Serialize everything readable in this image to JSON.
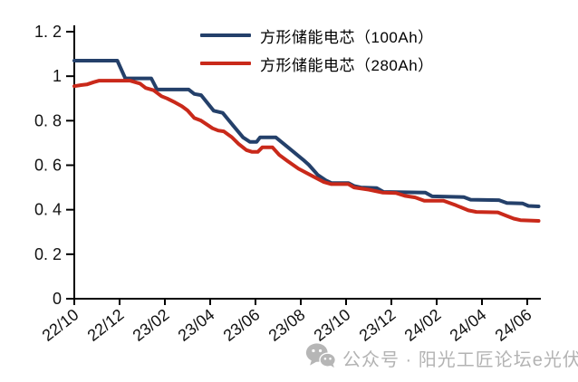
{
  "chart_data": {
    "type": "line",
    "title": "",
    "x_unit": "months since 2022/10 (0 = 22/10, tick every 2 months)",
    "x_tick_positions_months": [
      0,
      2,
      4,
      6,
      8,
      10,
      12,
      14,
      16,
      18,
      20
    ],
    "x_tick_labels": [
      "22/10",
      "22/12",
      "23/02",
      "23/04",
      "23/06",
      "23/08",
      "23/10",
      "23/12",
      "24/02",
      "24/04",
      "24/06"
    ],
    "y_ticks": [
      0,
      0.2,
      0.4,
      0.6,
      0.8,
      1,
      1.2
    ],
    "y_tick_labels": [
      "0",
      "0. 2",
      "0. 4",
      "0. 6",
      "0. 8",
      "1",
      "1. 2"
    ],
    "ylim": [
      0,
      1.2
    ],
    "xlim": [
      0,
      20.6
    ],
    "grid": false,
    "legend_position": "top-center",
    "series": [
      {
        "name": "方形储能电芯（100Ah）",
        "color": "#24406A",
        "points": [
          [
            0,
            1.07
          ],
          [
            1.9,
            1.07
          ],
          [
            2.25,
            0.99
          ],
          [
            3.4,
            0.99
          ],
          [
            3.65,
            0.94
          ],
          [
            5.05,
            0.94
          ],
          [
            5.3,
            0.92
          ],
          [
            5.6,
            0.915
          ],
          [
            6.15,
            0.845
          ],
          [
            6.55,
            0.835
          ],
          [
            7.0,
            0.78
          ],
          [
            7.45,
            0.725
          ],
          [
            7.75,
            0.705
          ],
          [
            8.05,
            0.705
          ],
          [
            8.2,
            0.725
          ],
          [
            8.9,
            0.725
          ],
          [
            9.5,
            0.675
          ],
          [
            10.1,
            0.625
          ],
          [
            10.35,
            0.602
          ],
          [
            10.75,
            0.556
          ],
          [
            11.1,
            0.532
          ],
          [
            11.35,
            0.52
          ],
          [
            12.1,
            0.52
          ],
          [
            12.35,
            0.507
          ],
          [
            12.65,
            0.5
          ],
          [
            13.35,
            0.497
          ],
          [
            13.65,
            0.48
          ],
          [
            15.5,
            0.477
          ],
          [
            15.8,
            0.46
          ],
          [
            17.2,
            0.457
          ],
          [
            17.5,
            0.445
          ],
          [
            18.75,
            0.443
          ],
          [
            19.1,
            0.43
          ],
          [
            19.8,
            0.428
          ],
          [
            20.05,
            0.417
          ],
          [
            20.5,
            0.415
          ]
        ]
      },
      {
        "name": "方形储能电芯（280Ah）",
        "color": "#C9291A",
        "points": [
          [
            0,
            0.955
          ],
          [
            0.3,
            0.96
          ],
          [
            0.55,
            0.963
          ],
          [
            0.85,
            0.973
          ],
          [
            1.1,
            0.98
          ],
          [
            2.45,
            0.98
          ],
          [
            2.9,
            0.967
          ],
          [
            3.15,
            0.947
          ],
          [
            3.5,
            0.937
          ],
          [
            3.85,
            0.91
          ],
          [
            4.1,
            0.9
          ],
          [
            4.45,
            0.882
          ],
          [
            4.75,
            0.865
          ],
          [
            5.0,
            0.846
          ],
          [
            5.3,
            0.812
          ],
          [
            5.6,
            0.8
          ],
          [
            5.9,
            0.78
          ],
          [
            6.1,
            0.766
          ],
          [
            6.35,
            0.756
          ],
          [
            6.6,
            0.752
          ],
          [
            6.95,
            0.726
          ],
          [
            7.25,
            0.696
          ],
          [
            7.6,
            0.668
          ],
          [
            7.85,
            0.66
          ],
          [
            8.1,
            0.66
          ],
          [
            8.3,
            0.68
          ],
          [
            8.75,
            0.68
          ],
          [
            9.05,
            0.646
          ],
          [
            9.4,
            0.62
          ],
          [
            9.9,
            0.584
          ],
          [
            10.5,
            0.552
          ],
          [
            11.0,
            0.525
          ],
          [
            11.35,
            0.515
          ],
          [
            12.1,
            0.515
          ],
          [
            12.35,
            0.5
          ],
          [
            13.0,
            0.49
          ],
          [
            13.6,
            0.477
          ],
          [
            14.2,
            0.475
          ],
          [
            14.6,
            0.462
          ],
          [
            15.05,
            0.455
          ],
          [
            15.45,
            0.44
          ],
          [
            16.3,
            0.44
          ],
          [
            16.85,
            0.42
          ],
          [
            17.4,
            0.397
          ],
          [
            17.75,
            0.39
          ],
          [
            18.7,
            0.388
          ],
          [
            19.05,
            0.374
          ],
          [
            19.4,
            0.36
          ],
          [
            19.7,
            0.353
          ],
          [
            20.5,
            0.35
          ]
        ]
      }
    ]
  },
  "watermark": {
    "icon": "wechat-icon",
    "text": "公众号 · 阳光工匠论坛e光伏",
    "color": "#b3b3b3"
  },
  "colors": {
    "axis": "#000000",
    "background": "#ffffff",
    "series_100ah": "#24406A",
    "series_280ah": "#C9291A"
  }
}
